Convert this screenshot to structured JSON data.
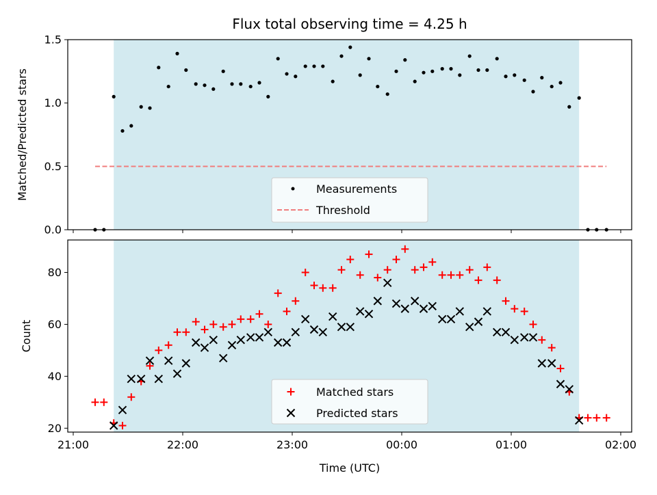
{
  "chart_data": [
    {
      "type": "scatter",
      "title": "Flux total observing time = 4.25 h",
      "xlabel": "",
      "ylabel": "Matched/Predicted stars",
      "xlim": [
        20.95,
        26.1
      ],
      "ylim": [
        0.0,
        1.5
      ],
      "yticks": [
        0.0,
        0.5,
        1.0,
        1.5
      ],
      "ytick_labels": [
        "0.0",
        "0.5",
        "1.0",
        "1.5"
      ],
      "x_tick_hours": [
        21,
        22,
        23,
        24,
        25,
        26
      ],
      "x_tick_labels_visible": false,
      "shaded_span": {
        "x_start": 21.37,
        "x_end": 25.62,
        "color": "#d3eaf0"
      },
      "legend_position": "lower center",
      "colors": {
        "measurements": "#000000",
        "threshold": "#f07d7d"
      },
      "threshold": {
        "name": "Threshold",
        "value": 0.5,
        "x_range": [
          21.2,
          25.87
        ]
      },
      "series": [
        {
          "name": "Measurements",
          "marker": "dot",
          "x": [
            21.2,
            21.28,
            21.37,
            21.45,
            21.53,
            21.62,
            21.7,
            21.78,
            21.87,
            21.95,
            22.03,
            22.12,
            22.2,
            22.28,
            22.37,
            22.45,
            22.53,
            22.62,
            22.7,
            22.78,
            22.87,
            22.95,
            23.03,
            23.12,
            23.2,
            23.28,
            23.37,
            23.45,
            23.53,
            23.62,
            23.7,
            23.78,
            23.87,
            23.95,
            24.03,
            24.12,
            24.2,
            24.28,
            24.37,
            24.45,
            24.53,
            24.62,
            24.7,
            24.78,
            24.87,
            24.95,
            25.03,
            25.12,
            25.2,
            25.28,
            25.37,
            25.45,
            25.53,
            25.62,
            25.7,
            25.78,
            25.87
          ],
          "y": [
            0.0,
            0.0,
            1.05,
            0.78,
            0.82,
            0.97,
            0.96,
            1.28,
            1.13,
            1.39,
            1.26,
            1.15,
            1.14,
            1.11,
            1.25,
            1.15,
            1.15,
            1.13,
            1.16,
            1.05,
            1.35,
            1.23,
            1.21,
            1.29,
            1.29,
            1.29,
            1.17,
            1.37,
            1.44,
            1.22,
            1.35,
            1.13,
            1.07,
            1.25,
            1.34,
            1.17,
            1.24,
            1.25,
            1.27,
            1.27,
            1.22,
            1.37,
            1.26,
            1.26,
            1.35,
            1.21,
            1.22,
            1.18,
            1.09,
            1.2,
            1.13,
            1.16,
            0.97,
            1.04,
            0.0,
            0.0,
            0.0
          ]
        }
      ]
    },
    {
      "type": "scatter",
      "title": "",
      "xlabel": "Time (UTC)",
      "ylabel": "Count",
      "xlim": [
        20.95,
        26.1
      ],
      "ylim": [
        18.5,
        92.5
      ],
      "yticks": [
        20,
        40,
        60,
        80
      ],
      "ytick_labels": [
        "20",
        "40",
        "60",
        "80"
      ],
      "x_tick_hours": [
        21,
        22,
        23,
        24,
        25,
        26
      ],
      "x_tick_labels": [
        "21:00",
        "22:00",
        "23:00",
        "00:00",
        "01:00",
        "02:00"
      ],
      "shaded_span": {
        "x_start": 21.37,
        "x_end": 25.62,
        "color": "#d3eaf0"
      },
      "legend_position": "lower center",
      "colors": {
        "matched": "#ff0000",
        "predicted": "#000000"
      },
      "series": [
        {
          "name": "Matched stars",
          "marker": "plus",
          "x": [
            21.2,
            21.28,
            21.37,
            21.45,
            21.53,
            21.62,
            21.7,
            21.78,
            21.87,
            21.95,
            22.03,
            22.12,
            22.2,
            22.28,
            22.37,
            22.45,
            22.53,
            22.62,
            22.7,
            22.78,
            22.87,
            22.95,
            23.03,
            23.12,
            23.2,
            23.28,
            23.37,
            23.45,
            23.53,
            23.62,
            23.7,
            23.78,
            23.87,
            23.95,
            24.03,
            24.12,
            24.2,
            24.28,
            24.37,
            24.45,
            24.53,
            24.62,
            24.7,
            24.78,
            24.87,
            24.95,
            25.03,
            25.12,
            25.2,
            25.28,
            25.37,
            25.45,
            25.53,
            25.62,
            25.7,
            25.78,
            25.87
          ],
          "y": [
            30,
            30,
            22,
            21,
            32,
            38,
            44,
            50,
            52,
            57,
            57,
            61,
            58,
            60,
            59,
            60,
            62,
            62,
            64,
            60,
            72,
            65,
            69,
            80,
            75,
            74,
            74,
            81,
            85,
            79,
            87,
            78,
            81,
            85,
            89,
            81,
            82,
            84,
            79,
            79,
            79,
            81,
            77,
            82,
            77,
            69,
            66,
            65,
            60,
            54,
            51,
            43,
            34,
            24,
            24,
            24,
            24
          ]
        },
        {
          "name": "Predicted stars",
          "marker": "x",
          "x": [
            21.37,
            21.45,
            21.53,
            21.62,
            21.7,
            21.78,
            21.87,
            21.95,
            22.03,
            22.12,
            22.2,
            22.28,
            22.37,
            22.45,
            22.53,
            22.62,
            22.7,
            22.78,
            22.87,
            22.95,
            23.03,
            23.12,
            23.2,
            23.28,
            23.37,
            23.45,
            23.53,
            23.62,
            23.7,
            23.78,
            23.87,
            23.95,
            24.03,
            24.12,
            24.2,
            24.28,
            24.37,
            24.45,
            24.53,
            24.62,
            24.7,
            24.78,
            24.87,
            24.95,
            25.03,
            25.12,
            25.2,
            25.28,
            25.37,
            25.45,
            25.53,
            25.62
          ],
          "y": [
            21,
            27,
            39,
            39,
            46,
            39,
            46,
            41,
            45,
            53,
            51,
            54,
            47,
            52,
            54,
            55,
            55,
            57,
            53,
            53,
            57,
            62,
            58,
            57,
            63,
            59,
            59,
            65,
            64,
            69,
            76,
            68,
            66,
            69,
            66,
            67,
            62,
            62,
            65,
            59,
            61,
            65,
            57,
            57,
            54,
            55,
            55,
            45,
            45,
            37,
            35,
            23
          ]
        }
      ]
    }
  ]
}
